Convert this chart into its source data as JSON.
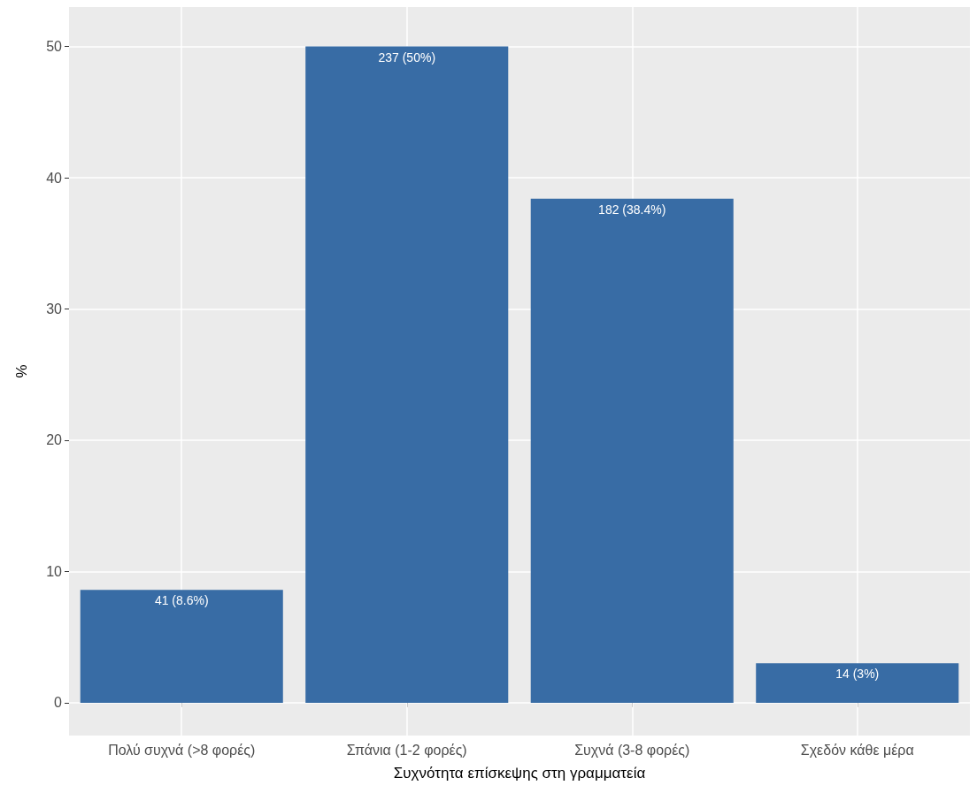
{
  "chart_data": {
    "type": "bar",
    "xlabel": "Συχνότητα επίσκεψης στη γραμματεία",
    "ylabel": "%",
    "categories": [
      "Πολύ συχνά (>8 φορές)",
      "Σπάνια (1-2 φορές)",
      "Συχνά (3-8 φορές)",
      "Σχεδόν κάθε μέρα"
    ],
    "values": [
      8.6,
      50,
      38.4,
      3
    ],
    "value_labels": [
      "41 (8.6%)",
      "237 (50%)",
      "182 (38.4%)",
      "14 (3%)"
    ],
    "color": "#386ca5",
    "ylim": [
      -2.5,
      53
    ],
    "yticks": [
      0,
      10,
      20,
      30,
      40,
      50
    ],
    "grid": true
  }
}
